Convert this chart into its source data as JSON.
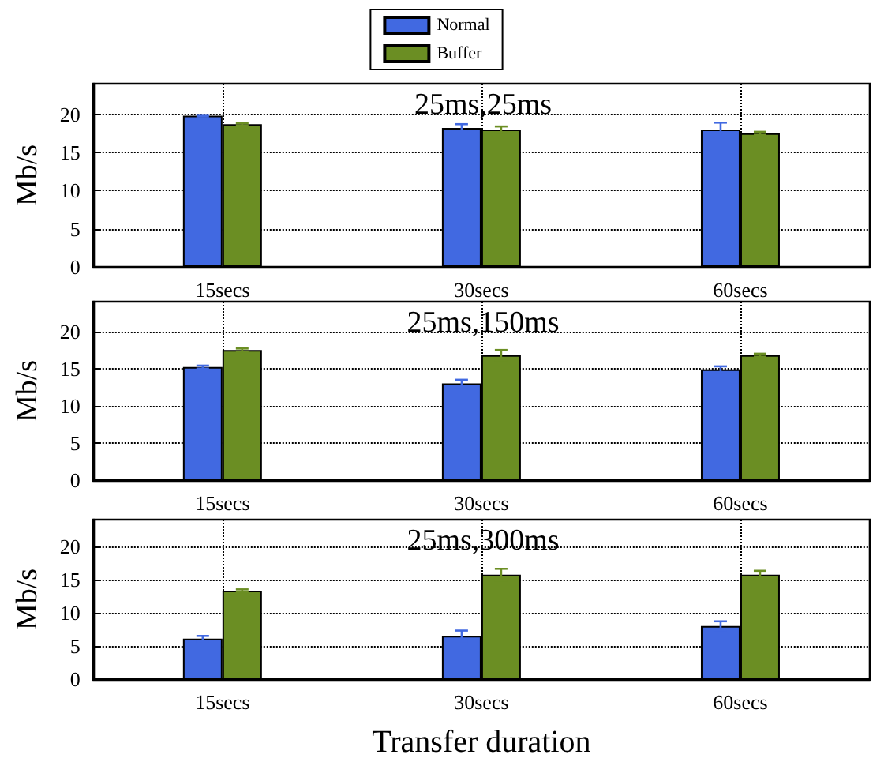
{
  "chart_data": [
    {
      "type": "bar",
      "title": "25ms,25ms",
      "ylabel": "Mb/s",
      "categories": [
        "15secs",
        "30secs",
        "60secs"
      ],
      "series": [
        {
          "name": "Normal",
          "color": "#4169e1",
          "values": [
            19.8,
            18.2,
            18.0
          ],
          "errors": [
            0.1,
            0.5,
            0.9
          ]
        },
        {
          "name": "Buffer",
          "color": "#6b8e23",
          "values": [
            18.7,
            18.0,
            17.5
          ],
          "errors": [
            0.15,
            0.4,
            0.2
          ]
        }
      ],
      "ylim": [
        0,
        24
      ],
      "yticks": [
        0,
        5,
        10,
        15,
        20
      ],
      "grid": true,
      "legend": "top"
    },
    {
      "type": "bar",
      "title": "25ms,150ms",
      "ylabel": "Mb/s",
      "categories": [
        "15secs",
        "30secs",
        "60secs"
      ],
      "series": [
        {
          "color": "#4169e1",
          "values": [
            15.2,
            13.0,
            14.9
          ],
          "errors": [
            0.2,
            0.5,
            0.4
          ]
        },
        {
          "color": "#6b8e23",
          "values": [
            17.5,
            16.8,
            16.8
          ],
          "errors": [
            0.2,
            0.7,
            0.2
          ]
        }
      ],
      "ylim": [
        0,
        24
      ],
      "yticks": [
        0,
        5,
        10,
        15,
        20
      ],
      "grid": true
    },
    {
      "type": "bar",
      "title": "25ms,300ms",
      "xlabel": "Transfer duration",
      "ylabel": "Mb/s",
      "categories": [
        "15secs",
        "30secs",
        "60secs"
      ],
      "series": [
        {
          "color": "#4169e1",
          "values": [
            6.1,
            6.5,
            8.0
          ],
          "errors": [
            0.4,
            0.8,
            0.7
          ]
        },
        {
          "color": "#6b8e23",
          "values": [
            13.3,
            15.7,
            15.7
          ],
          "errors": [
            0.2,
            0.9,
            0.6
          ]
        }
      ],
      "ylim": [
        0,
        24
      ],
      "yticks": [
        0,
        5,
        10,
        15,
        20
      ],
      "grid": true
    }
  ]
}
